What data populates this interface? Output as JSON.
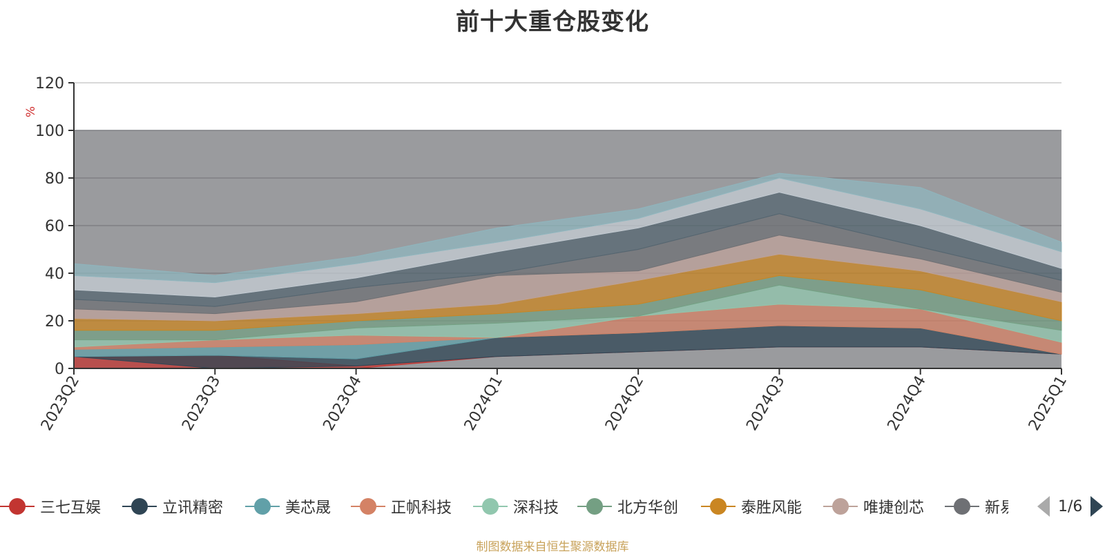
{
  "chart_data": {
    "type": "area",
    "title": "前十大重仓股变化",
    "ylabel": "%",
    "ylim": [
      0,
      120
    ],
    "yticks": [
      0,
      20,
      40,
      60,
      80,
      100,
      120
    ],
    "categories": [
      "2023Q2",
      "2023Q3",
      "2023Q4",
      "2024Q1",
      "2024Q2",
      "2024Q3",
      "2024Q4",
      "2025Q1"
    ],
    "background_band": {
      "from": 0,
      "to": 100,
      "color": "#9a9b9e"
    },
    "grid": true,
    "legend_position": "bottom",
    "layers": [
      {
        "name": "三七互娱",
        "color": "#c23531",
        "lower": [
          0,
          0,
          0,
          5,
          7,
          9,
          9,
          6
        ],
        "upper": [
          5,
          5.5,
          1,
          5,
          7,
          9,
          9,
          6
        ]
      },
      {
        "name": "立讯精密",
        "color": "#2f4554",
        "lower": [
          5,
          0,
          1,
          5,
          7,
          9,
          9,
          6
        ],
        "upper": [
          5,
          5.5,
          4,
          13,
          15,
          18,
          17,
          6
        ]
      },
      {
        "name": "美芯晟",
        "color": "#61a0a8",
        "lower": [
          5,
          5.5,
          4,
          13,
          15,
          18,
          17,
          6
        ],
        "upper": [
          8,
          9,
          10,
          13,
          15,
          18,
          17,
          6
        ]
      },
      {
        "name": "正帆科技",
        "color": "#d48265",
        "lower": [
          8,
          9,
          10,
          13,
          15,
          18,
          17,
          6
        ],
        "upper": [
          9,
          12,
          14,
          13,
          22,
          27,
          25,
          11
        ]
      },
      {
        "name": "深科技",
        "color": "#91c7ae",
        "lower": [
          9,
          12,
          14,
          13,
          22,
          27,
          25,
          11
        ],
        "upper": [
          12,
          12,
          17,
          19,
          22,
          35,
          25,
          16
        ]
      },
      {
        "name": "北方华创",
        "color": "#749f83",
        "lower": [
          12,
          12,
          17,
          19,
          22,
          35,
          25,
          16
        ],
        "upper": [
          16,
          16,
          20,
          23,
          27,
          39,
          33,
          20
        ]
      },
      {
        "name": "泰胜风能",
        "color": "#ca8622",
        "lower": [
          16,
          16,
          20,
          23,
          27,
          39,
          33,
          20
        ],
        "upper": [
          21,
          20,
          23,
          27,
          37,
          48,
          41,
          28
        ]
      },
      {
        "name": "唯捷创芯",
        "color": "#bda29a",
        "lower": [
          21,
          20,
          23,
          27,
          37,
          48,
          41,
          28
        ],
        "upper": [
          25,
          23,
          28,
          39,
          41,
          56,
          46,
          32
        ]
      },
      {
        "name": "新易盛",
        "color": "#6e7074",
        "lower": [
          25,
          23,
          28,
          39,
          41,
          56,
          46,
          32
        ],
        "upper": [
          29,
          26,
          34,
          40,
          50,
          65,
          51,
          37
        ]
      },
      {
        "name": "",
        "color": "#546570",
        "lower": [
          29,
          26,
          34,
          40,
          50,
          65,
          51,
          37
        ],
        "upper": [
          33,
          30,
          38,
          49,
          59,
          74,
          60,
          42
        ]
      },
      {
        "name": "",
        "color": "#c4ccd3",
        "lower": [
          33,
          30,
          38,
          49,
          59,
          74,
          60,
          42
        ],
        "upper": [
          39,
          36,
          44,
          53,
          63,
          80,
          67,
          49
        ]
      },
      {
        "name": "",
        "color": "#8fb5bd",
        "lower": [
          39,
          36,
          44,
          53,
          63,
          80,
          67,
          49
        ],
        "upper": [
          44,
          39,
          47,
          59,
          67,
          82,
          76,
          53
        ]
      }
    ]
  },
  "legend": {
    "items": [
      {
        "label": "三七互娱",
        "color": "#c23531"
      },
      {
        "label": "立讯精密",
        "color": "#2f4554"
      },
      {
        "label": "美芯晟",
        "color": "#61a0a8"
      },
      {
        "label": "正帆科技",
        "color": "#d48265"
      },
      {
        "label": "深科技",
        "color": "#91c7ae"
      },
      {
        "label": "北方华创",
        "color": "#749f83"
      },
      {
        "label": "泰胜风能",
        "color": "#ca8622"
      },
      {
        "label": "唯捷创芯",
        "color": "#bda29a"
      },
      {
        "label": "新易盛",
        "color": "#6e7074"
      }
    ],
    "page_indicator": "1/6",
    "prev_icon": "triangle-left-icon",
    "next_icon": "triangle-right-icon"
  },
  "source_note": "制图数据来自恒生聚源数据库"
}
